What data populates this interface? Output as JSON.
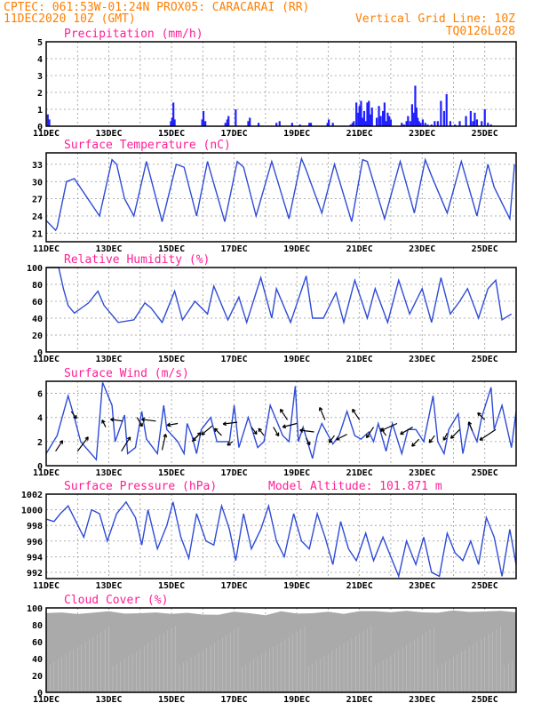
{
  "header": {
    "line1_left": "CPTEC:   061:53W-01:24N   PROX05: CARACARAI (RR)",
    "line2_left": "11DEC2020 10Z (GMT)",
    "line2_right": "Vertical Grid Line: 10Z",
    "line3_right": "TQ0126L028"
  },
  "x_day_labels": [
    "11DEC",
    "13DEC",
    "15DEC",
    "17DEC",
    "19DEC",
    "21DEC",
    "23DEC",
    "25DEC"
  ],
  "colors": {
    "header": "#ff7f00",
    "panel_title": "#ff1e96",
    "series": "#2e4bd6",
    "precip_bar": "#2020ff",
    "cloud_fill": "#aaaaaa"
  },
  "chart_data": [
    {
      "type": "bar",
      "title": "Precipitation (mm/h)",
      "ylim": [
        0,
        5
      ],
      "yticks": [
        0,
        1,
        2,
        3,
        4,
        5
      ],
      "x_days": [
        0.05,
        0.1,
        3.98,
        4.02,
        4.06,
        4.1,
        4.98,
        5.02,
        5.08,
        5.72,
        5.78,
        5.82,
        6.05,
        6.45,
        6.5,
        6.78,
        7.35,
        7.45,
        7.85,
        8.1,
        8.4,
        8.45,
        8.98,
        9.02,
        9.15,
        9.72,
        9.78,
        9.82,
        9.9,
        9.96,
        10.0,
        10.05,
        10.1,
        10.15,
        10.2,
        10.25,
        10.3,
        10.35,
        10.4,
        10.55,
        10.62,
        10.68,
        10.75,
        10.8,
        10.85,
        10.9,
        10.95,
        11.0,
        11.35,
        11.42,
        11.5,
        11.55,
        11.62,
        11.68,
        11.72,
        11.78,
        11.82,
        11.86,
        11.9,
        11.95,
        12.02,
        12.1,
        12.18,
        12.3,
        12.4,
        12.5,
        12.6,
        12.7,
        12.78,
        12.9,
        13.05,
        13.2,
        13.4,
        13.55,
        13.62,
        13.68,
        13.75,
        13.9,
        14.0,
        14.1,
        14.2
      ],
      "values": [
        0.7,
        0.4,
        0.3,
        0.5,
        1.4,
        0.4,
        0.4,
        0.9,
        0.3,
        0.2,
        0.4,
        0.6,
        1.0,
        0.3,
        0.5,
        0.2,
        0.2,
        0.3,
        0.2,
        0.1,
        0.2,
        0.2,
        0.2,
        0.4,
        0.2,
        0.1,
        0.2,
        0.3,
        1.4,
        0.8,
        1.2,
        1.5,
        0.5,
        0.9,
        0.3,
        1.4,
        1.5,
        0.7,
        1.1,
        0.5,
        1.2,
        0.6,
        0.9,
        1.4,
        0.3,
        0.8,
        0.6,
        0.4,
        0.2,
        0.1,
        0.3,
        0.6,
        0.3,
        1.3,
        0.8,
        2.4,
        1.1,
        0.5,
        0.3,
        0.2,
        0.4,
        0.2,
        0.1,
        0.1,
        0.3,
        0.3,
        1.5,
        0.9,
        1.9,
        0.3,
        0.1,
        0.3,
        0.6,
        0.9,
        0.3,
        0.8,
        0.4,
        0.3,
        1.0,
        0.2,
        0.1
      ]
    },
    {
      "type": "line",
      "title": "Surface Temperature (nC)",
      "ylim": [
        19.5,
        35
      ],
      "yticks": [
        21,
        24,
        27,
        30,
        33
      ],
      "x_days": [
        0,
        0.3,
        0.35,
        0.65,
        0.9,
        1.7,
        2.1,
        2.25,
        2.5,
        2.8,
        3.2,
        3.7,
        4.15,
        4.4,
        4.8,
        5.15,
        5.7,
        6.1,
        6.3,
        6.7,
        7.2,
        7.75,
        8.15,
        8.3,
        8.8,
        9.2,
        9.75,
        10.1,
        10.25,
        10.8,
        11.3,
        11.75,
        12.1,
        12.3,
        12.8,
        13.25,
        13.75,
        14.1,
        14.3,
        14.8,
        14.95
      ],
      "values": [
        23.2,
        21.5,
        22.0,
        30.0,
        30.5,
        24.0,
        33.8,
        33.0,
        27.0,
        24.0,
        33.5,
        23.0,
        33.0,
        32.5,
        24.0,
        33.5,
        23.0,
        33.5,
        32.5,
        24.0,
        33.5,
        23.5,
        34.0,
        32.0,
        24.5,
        33.0,
        23.0,
        33.8,
        33.5,
        23.5,
        33.5,
        24.5,
        33.8,
        31.0,
        24.5,
        33.5,
        24.0,
        33.0,
        29.0,
        23.5,
        33.0
      ]
    },
    {
      "type": "line",
      "title": "Relative Humidity (%)",
      "ylim": [
        0,
        100
      ],
      "yticks": [
        0,
        20,
        40,
        60,
        80,
        100
      ],
      "x_days": [
        0,
        0.4,
        0.55,
        0.7,
        0.9,
        1.35,
        1.65,
        1.85,
        2.3,
        2.8,
        3.15,
        3.35,
        3.7,
        4.1,
        4.35,
        4.75,
        5.15,
        5.35,
        5.8,
        6.15,
        6.4,
        6.85,
        7.2,
        7.35,
        7.8,
        8.3,
        8.5,
        8.85,
        9.25,
        9.5,
        9.85,
        10.25,
        10.5,
        10.9,
        11.25,
        11.6,
        12.0,
        12.3,
        12.6,
        12.9,
        13.2,
        13.45,
        13.8,
        14.1,
        14.35,
        14.55,
        14.85
      ],
      "values": [
        100,
        100,
        75,
        55,
        46,
        58,
        72,
        55,
        35,
        38,
        58,
        52,
        35,
        72,
        38,
        60,
        45,
        78,
        38,
        65,
        35,
        88,
        40,
        75,
        35,
        90,
        40,
        40,
        70,
        35,
        85,
        40,
        75,
        35,
        85,
        45,
        75,
        35,
        88,
        45,
        60,
        75,
        40,
        75,
        85,
        38,
        45
      ]
    },
    {
      "type": "line",
      "title": "Surface Wind (m/s)",
      "ylim": [
        0,
        7
      ],
      "yticks": [
        0,
        2,
        4,
        6
      ],
      "x_days": [
        0,
        0.35,
        0.7,
        0.9,
        1.1,
        1.6,
        1.8,
        2.1,
        2.2,
        2.5,
        2.6,
        2.85,
        3.05,
        3.2,
        3.55,
        3.75,
        3.85,
        4.2,
        4.4,
        4.5,
        4.65,
        4.8,
        4.95,
        5.25,
        5.45,
        5.85,
        6.0,
        6.15,
        6.45,
        6.75,
        6.95,
        7.15,
        7.55,
        7.75,
        7.95,
        8.05,
        8.2,
        8.5,
        8.65,
        8.8,
        9.15,
        9.35,
        9.6,
        9.85,
        10.05,
        10.3,
        10.45,
        10.6,
        10.85,
        11.05,
        11.35,
        11.55,
        11.8,
        12.05,
        12.35,
        12.5,
        12.7,
        12.85,
        13.15,
        13.3,
        13.5,
        13.75,
        13.9,
        14.2,
        14.3,
        14.55,
        14.85,
        15.0
      ],
      "values": [
        1.0,
        2.5,
        5.8,
        4.0,
        2.0,
        0.5,
        6.9,
        5.0,
        2.0,
        4.2,
        1.0,
        1.5,
        4.5,
        2.2,
        1.0,
        5.0,
        3.0,
        2.0,
        1.0,
        3.5,
        2.5,
        1.0,
        3.0,
        4.0,
        2.0,
        2.0,
        5.0,
        1.5,
        4.0,
        1.5,
        2.0,
        5.0,
        2.5,
        2.0,
        6.6,
        2.0,
        3.2,
        0.6,
        2.5,
        3.5,
        1.8,
        2.5,
        4.5,
        2.5,
        2.2,
        2.8,
        2.0,
        3.5,
        1.2,
        3.5,
        1.0,
        3.0,
        3.0,
        2.0,
        5.8,
        2.0,
        1.0,
        3.0,
        4.3,
        1.0,
        3.5,
        2.0,
        4.0,
        6.5,
        3.0,
        5.0,
        1.5,
        4.5
      ],
      "arrows": [
        {
          "day": 0.3,
          "level": 1.2,
          "dx": 8,
          "dy": -12
        },
        {
          "day": 0.8,
          "level": 4.5,
          "dx": 6,
          "dy": 8
        },
        {
          "day": 1.0,
          "level": 1.2,
          "dx": 12,
          "dy": -16
        },
        {
          "day": 1.9,
          "level": 3.2,
          "dx": -4,
          "dy": -8
        },
        {
          "day": 2.45,
          "level": 3.7,
          "dx": -14,
          "dy": -2
        },
        {
          "day": 2.4,
          "level": 1.2,
          "dx": 10,
          "dy": -16
        },
        {
          "day": 2.9,
          "level": 4.0,
          "dx": 6,
          "dy": 10
        },
        {
          "day": 3.5,
          "level": 3.7,
          "dx": -16,
          "dy": -2
        },
        {
          "day": 3.7,
          "level": 1.3,
          "dx": 4,
          "dy": -18
        },
        {
          "day": 4.2,
          "level": 3.5,
          "dx": -12,
          "dy": 2
        },
        {
          "day": 4.65,
          "level": 2.0,
          "dx": 10,
          "dy": -10
        },
        {
          "day": 4.85,
          "level": 2.5,
          "dx": -6,
          "dy": 6
        },
        {
          "day": 5.3,
          "level": 3.3,
          "dx": -12,
          "dy": 10
        },
        {
          "day": 5.6,
          "level": 2.5,
          "dx": -8,
          "dy": -8
        },
        {
          "day": 5.95,
          "level": 2.0,
          "dx": -6,
          "dy": 4
        },
        {
          "day": 6.1,
          "level": 3.6,
          "dx": -16,
          "dy": 2
        },
        {
          "day": 6.55,
          "level": 3.2,
          "dx": 6,
          "dy": 8
        },
        {
          "day": 6.95,
          "level": 2.5,
          "dx": -6,
          "dy": -8
        },
        {
          "day": 7.25,
          "level": 3.2,
          "dx": 6,
          "dy": 10
        },
        {
          "day": 7.7,
          "level": 3.8,
          "dx": -8,
          "dy": -12
        },
        {
          "day": 8.0,
          "level": 3.5,
          "dx": -16,
          "dy": 4
        },
        {
          "day": 8.3,
          "level": 2.3,
          "dx": 4,
          "dy": 8
        },
        {
          "day": 8.55,
          "level": 2.8,
          "dx": -16,
          "dy": -2
        },
        {
          "day": 8.9,
          "level": 3.8,
          "dx": -6,
          "dy": -14
        },
        {
          "day": 9.2,
          "level": 2.5,
          "dx": -6,
          "dy": 8
        },
        {
          "day": 9.6,
          "level": 2.6,
          "dx": -12,
          "dy": 6
        },
        {
          "day": 10.0,
          "level": 3.8,
          "dx": -8,
          "dy": -12
        },
        {
          "day": 10.45,
          "level": 3.2,
          "dx": -8,
          "dy": 12
        },
        {
          "day": 10.85,
          "level": 2.5,
          "dx": -6,
          "dy": -8
        },
        {
          "day": 11.2,
          "level": 3.5,
          "dx": -18,
          "dy": 8
        },
        {
          "day": 11.7,
          "level": 3.2,
          "dx": -14,
          "dy": 8
        },
        {
          "day": 11.9,
          "level": 2.2,
          "dx": -8,
          "dy": 8
        },
        {
          "day": 12.4,
          "level": 2.5,
          "dx": -6,
          "dy": 8
        },
        {
          "day": 12.8,
          "level": 2.7,
          "dx": -4,
          "dy": 8
        },
        {
          "day": 13.2,
          "level": 3.0,
          "dx": -10,
          "dy": 10
        },
        {
          "day": 13.6,
          "level": 2.9,
          "dx": -4,
          "dy": -10
        },
        {
          "day": 14.0,
          "level": 3.8,
          "dx": -8,
          "dy": -8
        },
        {
          "day": 14.35,
          "level": 3.0,
          "dx": -18,
          "dy": 12
        }
      ]
    },
    {
      "type": "line",
      "title": "Surface Pressure (hPa)",
      "annotation": "Model Altitude: 101.871 m",
      "ylim": [
        991.2,
        1002
      ],
      "yticks": [
        992,
        994,
        996,
        998,
        1000,
        1002
      ],
      "x_days": [
        0,
        0.25,
        0.45,
        0.7,
        0.95,
        1.2,
        1.45,
        1.7,
        1.95,
        2.25,
        2.55,
        2.85,
        3.05,
        3.25,
        3.55,
        3.85,
        4.05,
        4.3,
        4.55,
        4.8,
        5.1,
        5.35,
        5.6,
        5.85,
        6.05,
        6.3,
        6.55,
        6.85,
        7.1,
        7.35,
        7.6,
        7.9,
        8.15,
        8.4,
        8.65,
        8.9,
        9.15,
        9.4,
        9.65,
        9.9,
        10.2,
        10.45,
        10.75,
        11.0,
        11.25,
        11.5,
        11.8,
        12.05,
        12.3,
        12.55,
        12.8,
        13.05,
        13.3,
        13.55,
        13.8,
        14.05,
        14.3,
        14.55,
        14.8,
        15.0
      ],
      "values": [
        998.8,
        998.5,
        999.5,
        1000.5,
        998.5,
        996.5,
        1000.0,
        999.5,
        996.0,
        999.5,
        1001.0,
        999.0,
        995.5,
        1000.0,
        995.0,
        998.0,
        1001.0,
        996.5,
        993.8,
        999.5,
        996.0,
        995.5,
        1000.5,
        997.5,
        993.5,
        999.5,
        995.0,
        997.5,
        1000.5,
        996.0,
        994.0,
        999.5,
        996.0,
        995.0,
        999.5,
        996.5,
        993.0,
        998.5,
        995.0,
        993.5,
        997.0,
        993.5,
        996.5,
        994.0,
        991.5,
        996.0,
        993.0,
        996.5,
        992.0,
        991.5,
        997.0,
        994.5,
        993.5,
        996.0,
        993.0,
        999.0,
        996.5,
        991.5,
        997.5,
        993.0
      ]
    },
    {
      "type": "area",
      "title": "Cloud Cover (%)",
      "ylim": [
        0,
        100
      ],
      "yticks": [
        0,
        20,
        40,
        60,
        80,
        100
      ],
      "x_days": [
        0,
        0.5,
        1.0,
        1.5,
        2.0,
        2.5,
        3.0,
        3.5,
        4.0,
        4.5,
        5.0,
        5.5,
        6.0,
        6.5,
        7.0,
        7.5,
        8.0,
        8.5,
        9.0,
        9.5,
        10.0,
        10.5,
        11.0,
        11.5,
        12.0,
        12.5,
        13.0,
        13.5,
        14.0,
        14.5,
        15.0
      ],
      "values": [
        96,
        95,
        94,
        96,
        96,
        95,
        95,
        95,
        95,
        95,
        93,
        94,
        96,
        95,
        93,
        96,
        95,
        95,
        96,
        95,
        97,
        97,
        97,
        97,
        96,
        96,
        97,
        97,
        97,
        97,
        97
      ]
    }
  ]
}
